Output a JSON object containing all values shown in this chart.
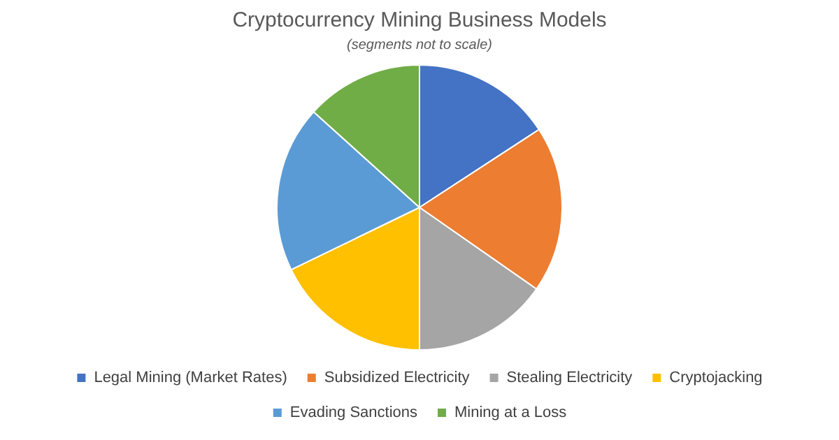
{
  "chart_data": {
    "type": "pie",
    "title": "Cryptocurrency Mining Business Models",
    "subtitle": "(segments not to scale)",
    "categories": [
      "Legal Mining (Market Rates)",
      "Subsidized Electricity",
      "Stealing Electricity",
      "Cryptojacking",
      "Evading Sanctions",
      "Mining at a Loss"
    ],
    "values": [
      15.8,
      18.9,
      15.3,
      17.8,
      18.9,
      13.3
    ],
    "colors": [
      "#4472c4",
      "#ed7d31",
      "#a5a5a5",
      "#ffc000",
      "#5b9bd5",
      "#70ad47"
    ],
    "legend": "bottom"
  }
}
